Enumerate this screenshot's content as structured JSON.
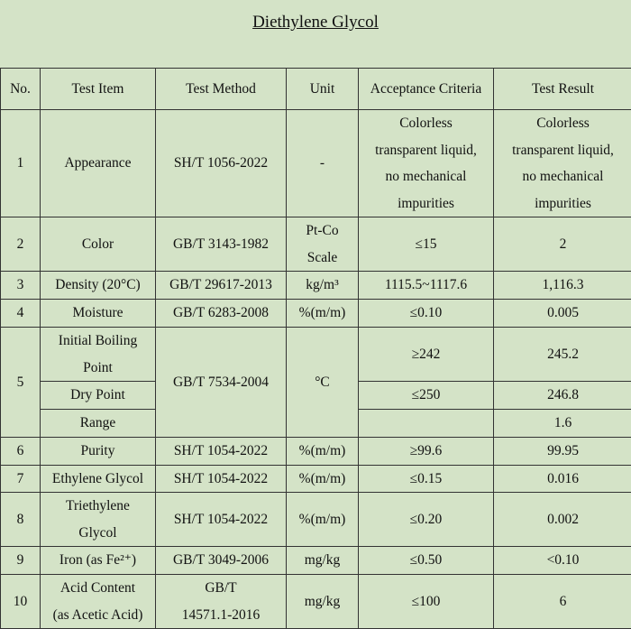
{
  "title": "Diethylene Glycol",
  "headers": [
    "No.",
    "Test Item",
    "Test Method",
    "Unit",
    "Acceptance Criteria",
    "Test Result"
  ],
  "rows": [
    {
      "no": "1",
      "item": "Appearance",
      "method": "SH/T 1056-2022",
      "unit": "-",
      "criteria": "Colorless transparent liquid, no mechanical impurities",
      "result": "Colorless transparent liquid, no mechanical impurities"
    },
    {
      "no": "2",
      "item": "Color",
      "method": "GB/T 3143-1982",
      "unit": "Pt-Co Scale",
      "criteria": "≤15",
      "result": "2"
    },
    {
      "no": "3",
      "item": "Density (20°C)",
      "method": "GB/T 29617-2013",
      "unit": "kg/m³",
      "criteria": "1115.5~1117.6",
      "result": "1,116.3"
    },
    {
      "no": "4",
      "item": "Moisture",
      "method": "GB/T 6283-2008",
      "unit": "%(m/m)",
      "criteria": "≤0.10",
      "result": "0.005"
    },
    {
      "no": "5",
      "method": "GB/T 7534-2004",
      "unit": "°C",
      "sub": [
        {
          "item": "Initial Boiling Point",
          "criteria": "≥242",
          "result": "245.2"
        },
        {
          "item": "Dry Point",
          "criteria": "≤250",
          "result": "246.8"
        },
        {
          "item": "Range",
          "criteria": "",
          "result": "1.6"
        }
      ]
    },
    {
      "no": "6",
      "item": "Purity",
      "method": "SH/T 1054-2022",
      "unit": "%(m/m)",
      "criteria": "≥99.6",
      "result": "99.95"
    },
    {
      "no": "7",
      "item": "Ethylene Glycol",
      "method": "SH/T 1054-2022",
      "unit": "%(m/m)",
      "criteria": "≤0.15",
      "result": "0.016"
    },
    {
      "no": "8",
      "item": "Triethylene Glycol",
      "method": "SH/T 1054-2022",
      "unit": "%(m/m)",
      "criteria": "≤0.20",
      "result": "0.002"
    },
    {
      "no": "9",
      "item": "Iron (as Fe²⁺)",
      "method": "GB/T 3049-2006",
      "unit": "mg/kg",
      "criteria": "≤0.50",
      "result": "<0.10"
    },
    {
      "no": "10",
      "item": "Acid Content (as Acetic Acid)",
      "method": "GB/T 14571.1-2016",
      "unit": "mg/kg",
      "criteria": "≤100",
      "result": "6"
    }
  ]
}
